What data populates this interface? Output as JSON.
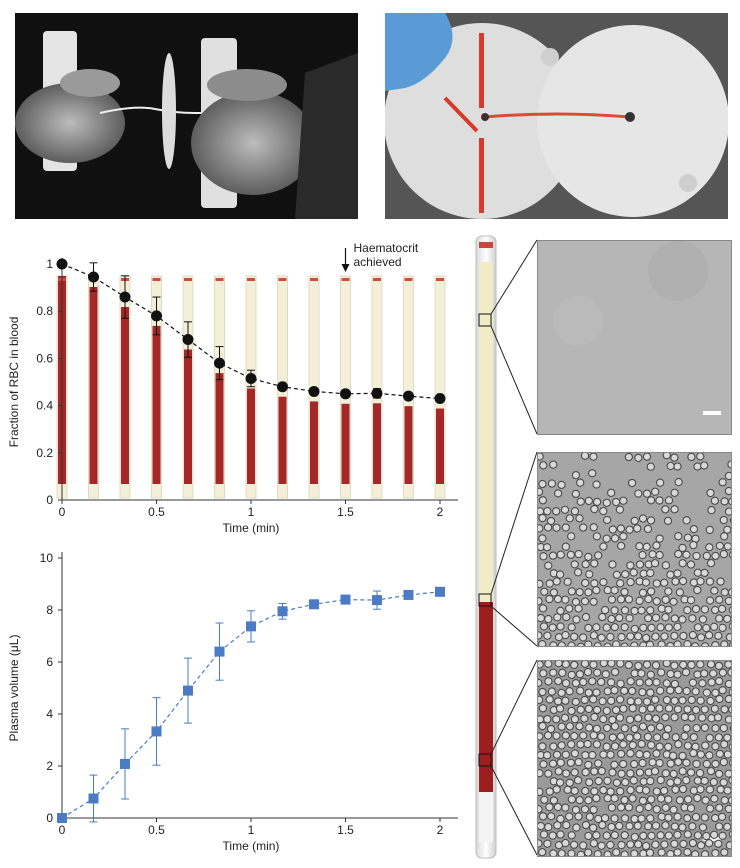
{
  "chart_data": [
    {
      "type": "scatter",
      "xlabel": "Time (min)",
      "ylabel": "Fraction of RBC in blood",
      "xlim": [
        0,
        2
      ],
      "ylim": [
        0,
        1
      ],
      "xticks": [
        "0",
        "0.5",
        "1",
        "1.5",
        "2"
      ],
      "yticks": [
        "0",
        "0.2",
        "0.4",
        "0.6",
        "0.8",
        "1"
      ],
      "annotation": "Haematocrit achieved",
      "annotation_x": 1.5,
      "grid": false,
      "series": [
        {
          "marker": "circle",
          "line": "dashed",
          "color": "#111111",
          "x": [
            0,
            0.1667,
            0.3333,
            0.5,
            0.6667,
            0.8333,
            1.0,
            1.1667,
            1.3333,
            1.5,
            1.6667,
            1.8333,
            2.0
          ],
          "y": [
            1.0,
            0.945,
            0.86,
            0.78,
            0.68,
            0.58,
            0.515,
            0.48,
            0.46,
            0.45,
            0.452,
            0.44,
            0.43
          ],
          "err": [
            0.005,
            0.06,
            0.09,
            0.08,
            0.075,
            0.07,
            0.035,
            0.015,
            0.01,
            0.01,
            0.02,
            0.01,
            0.01
          ]
        }
      ]
    },
    {
      "type": "scatter",
      "xlabel": "Time (min)",
      "ylabel": "Plasma volume (μL)",
      "xlim": [
        0,
        2
      ],
      "ylim": [
        0,
        10
      ],
      "xticks": [
        "0",
        "0.5",
        "1",
        "1.5",
        "2"
      ],
      "yticks": [
        "0",
        "2",
        "4",
        "6",
        "8",
        "10"
      ],
      "grid": false,
      "series": [
        {
          "marker": "square",
          "line": "dashed",
          "color": "#4a7bc4",
          "x": [
            0,
            0.1667,
            0.3333,
            0.5,
            0.6667,
            0.8333,
            1.0,
            1.1667,
            1.3333,
            1.5,
            1.6667,
            1.8333,
            2.0
          ],
          "y": [
            0.0,
            0.75,
            2.08,
            3.33,
            4.9,
            6.4,
            7.37,
            7.95,
            8.22,
            8.4,
            8.38,
            8.58,
            8.7
          ],
          "err": [
            0.05,
            0.9,
            1.35,
            1.3,
            1.25,
            1.1,
            0.6,
            0.3,
            0.12,
            0.08,
            0.35,
            0.1,
            0.1
          ]
        }
      ]
    }
  ]
}
